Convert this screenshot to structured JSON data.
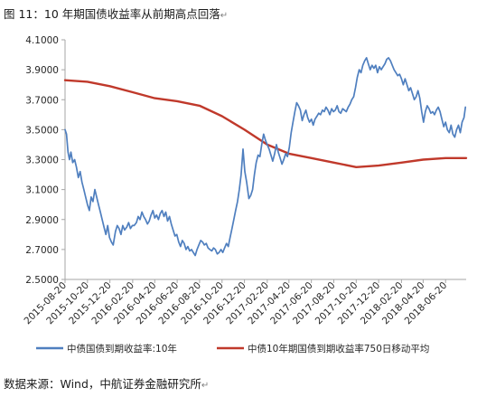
{
  "header": {
    "title": "图 11：10 年期国债收益率从前期高点回落",
    "title_mark": "↵"
  },
  "footer": {
    "source": "数据来源：Wind，中航证券金融研究所",
    "source_mark": "↵"
  },
  "colors": {
    "series_blue": "#4f7fbf",
    "series_red": "#c0392b",
    "axis": "#a6a6a6",
    "text": "#262626"
  },
  "chart_data": {
    "type": "line",
    "title": "",
    "xlabel": "",
    "ylabel": "",
    "ylim": [
      2.5,
      4.1
    ],
    "xlim": [
      "2015-08-20",
      "2018-08-15"
    ],
    "yticks": [
      "2.5000",
      "2.7000",
      "2.9000",
      "3.1000",
      "3.3000",
      "3.5000",
      "3.7000",
      "3.9000",
      "4.1000"
    ],
    "xticks": [
      "2015-08-20",
      "2015-10-20",
      "2015-12-20",
      "2016-02-20",
      "2016-04-20",
      "2016-06-20",
      "2016-08-20",
      "2016-10-20",
      "2016-12-20",
      "2017-02-20",
      "2017-04-20",
      "2017-06-20",
      "2017-08-20",
      "2017-10-20",
      "2017-12-20",
      "2018-02-20",
      "2018-04-20",
      "2018-06-20"
    ],
    "grid": false,
    "legend": "bottom",
    "series": [
      {
        "name": "中债国债到期收益率:10年",
        "color": "#4f7fbf",
        "points": [
          [
            "2015-08-20",
            3.5
          ],
          [
            "2015-08-24",
            3.47
          ],
          [
            "2015-08-28",
            3.35
          ],
          [
            "2015-09-01",
            3.3
          ],
          [
            "2015-09-05",
            3.35
          ],
          [
            "2015-09-10",
            3.28
          ],
          [
            "2015-09-15",
            3.3
          ],
          [
            "2015-09-20",
            3.25
          ],
          [
            "2015-09-25",
            3.18
          ],
          [
            "2015-09-30",
            3.22
          ],
          [
            "2015-10-05",
            3.15
          ],
          [
            "2015-10-10",
            3.1
          ],
          [
            "2015-10-15",
            3.05
          ],
          [
            "2015-10-20",
            3.0
          ],
          [
            "2015-10-25",
            2.96
          ],
          [
            "2015-10-30",
            3.05
          ],
          [
            "2015-11-04",
            3.02
          ],
          [
            "2015-11-09",
            3.1
          ],
          [
            "2015-11-14",
            3.05
          ],
          [
            "2015-11-19",
            3.0
          ],
          [
            "2015-11-24",
            2.95
          ],
          [
            "2015-11-29",
            2.9
          ],
          [
            "2015-12-04",
            2.85
          ],
          [
            "2015-12-09",
            2.8
          ],
          [
            "2015-12-14",
            2.86
          ],
          [
            "2015-12-19",
            2.78
          ],
          [
            "2015-12-24",
            2.75
          ],
          [
            "2015-12-29",
            2.73
          ],
          [
            "2016-01-04",
            2.82
          ],
          [
            "2016-01-09",
            2.86
          ],
          [
            "2016-01-14",
            2.84
          ],
          [
            "2016-01-19",
            2.8
          ],
          [
            "2016-01-24",
            2.86
          ],
          [
            "2016-01-29",
            2.83
          ],
          [
            "2016-02-04",
            2.85
          ],
          [
            "2016-02-09",
            2.88
          ],
          [
            "2016-02-14",
            2.84
          ],
          [
            "2016-02-19",
            2.86
          ],
          [
            "2016-02-24",
            2.86
          ],
          [
            "2016-03-01",
            2.88
          ],
          [
            "2016-03-06",
            2.92
          ],
          [
            "2016-03-11",
            2.9
          ],
          [
            "2016-03-16",
            2.95
          ],
          [
            "2016-03-21",
            2.92
          ],
          [
            "2016-03-26",
            2.9
          ],
          [
            "2016-03-31",
            2.87
          ],
          [
            "2016-04-05",
            2.89
          ],
          [
            "2016-04-10",
            2.93
          ],
          [
            "2016-04-15",
            2.96
          ],
          [
            "2016-04-20",
            2.91
          ],
          [
            "2016-04-25",
            2.93
          ],
          [
            "2016-04-30",
            2.9
          ],
          [
            "2016-05-05",
            2.94
          ],
          [
            "2016-05-10",
            2.96
          ],
          [
            "2016-05-15",
            2.92
          ],
          [
            "2016-05-20",
            2.95
          ],
          [
            "2016-05-25",
            2.89
          ],
          [
            "2016-05-30",
            2.92
          ],
          [
            "2016-06-04",
            2.87
          ],
          [
            "2016-06-09",
            2.83
          ],
          [
            "2016-06-14",
            2.79
          ],
          [
            "2016-06-19",
            2.8
          ],
          [
            "2016-06-24",
            2.75
          ],
          [
            "2016-06-29",
            2.72
          ],
          [
            "2016-07-04",
            2.76
          ],
          [
            "2016-07-09",
            2.74
          ],
          [
            "2016-07-14",
            2.7
          ],
          [
            "2016-07-19",
            2.72
          ],
          [
            "2016-07-24",
            2.69
          ],
          [
            "2016-07-29",
            2.7
          ],
          [
            "2016-08-03",
            2.68
          ],
          [
            "2016-08-08",
            2.66
          ],
          [
            "2016-08-13",
            2.7
          ],
          [
            "2016-08-18",
            2.73
          ],
          [
            "2016-08-23",
            2.76
          ],
          [
            "2016-08-28",
            2.75
          ],
          [
            "2016-09-02",
            2.73
          ],
          [
            "2016-09-07",
            2.74
          ],
          [
            "2016-09-12",
            2.71
          ],
          [
            "2016-09-17",
            2.7
          ],
          [
            "2016-09-22",
            2.69
          ],
          [
            "2016-09-27",
            2.71
          ],
          [
            "2016-10-02",
            2.7
          ],
          [
            "2016-10-07",
            2.67
          ],
          [
            "2016-10-12",
            2.68
          ],
          [
            "2016-10-17",
            2.7
          ],
          [
            "2016-10-22",
            2.68
          ],
          [
            "2016-10-27",
            2.71
          ],
          [
            "2016-11-01",
            2.74
          ],
          [
            "2016-11-06",
            2.72
          ],
          [
            "2016-11-11",
            2.78
          ],
          [
            "2016-11-16",
            2.84
          ],
          [
            "2016-11-21",
            2.9
          ],
          [
            "2016-11-26",
            2.96
          ],
          [
            "2016-12-01",
            3.02
          ],
          [
            "2016-12-06",
            3.1
          ],
          [
            "2016-12-11",
            3.2
          ],
          [
            "2016-12-16",
            3.37
          ],
          [
            "2016-12-21",
            3.22
          ],
          [
            "2016-12-26",
            3.15
          ],
          [
            "2017-01-01",
            3.04
          ],
          [
            "2017-01-06",
            3.06
          ],
          [
            "2017-01-11",
            3.1
          ],
          [
            "2017-01-16",
            3.2
          ],
          [
            "2017-01-21",
            3.28
          ],
          [
            "2017-01-26",
            3.33
          ],
          [
            "2017-01-31",
            3.32
          ],
          [
            "2017-02-05",
            3.4
          ],
          [
            "2017-02-10",
            3.47
          ],
          [
            "2017-02-15",
            3.43
          ],
          [
            "2017-02-20",
            3.4
          ],
          [
            "2017-02-25",
            3.37
          ],
          [
            "2017-03-02",
            3.33
          ],
          [
            "2017-03-07",
            3.29
          ],
          [
            "2017-03-12",
            3.34
          ],
          [
            "2017-03-17",
            3.4
          ],
          [
            "2017-03-22",
            3.35
          ],
          [
            "2017-03-27",
            3.31
          ],
          [
            "2017-04-01",
            3.27
          ],
          [
            "2017-04-06",
            3.3
          ],
          [
            "2017-04-11",
            3.34
          ],
          [
            "2017-04-16",
            3.32
          ],
          [
            "2017-04-21",
            3.38
          ],
          [
            "2017-04-26",
            3.48
          ],
          [
            "2017-05-01",
            3.55
          ],
          [
            "2017-05-06",
            3.62
          ],
          [
            "2017-05-11",
            3.68
          ],
          [
            "2017-05-16",
            3.66
          ],
          [
            "2017-05-21",
            3.63
          ],
          [
            "2017-05-26",
            3.56
          ],
          [
            "2017-05-31",
            3.6
          ],
          [
            "2017-06-05",
            3.63
          ],
          [
            "2017-06-10",
            3.58
          ],
          [
            "2017-06-15",
            3.55
          ],
          [
            "2017-06-20",
            3.57
          ],
          [
            "2017-06-25",
            3.53
          ],
          [
            "2017-06-30",
            3.57
          ],
          [
            "2017-07-05",
            3.59
          ],
          [
            "2017-07-10",
            3.61
          ],
          [
            "2017-07-15",
            3.6
          ],
          [
            "2017-07-20",
            3.63
          ],
          [
            "2017-07-25",
            3.62
          ],
          [
            "2017-07-30",
            3.65
          ],
          [
            "2017-08-04",
            3.63
          ],
          [
            "2017-08-09",
            3.6
          ],
          [
            "2017-08-14",
            3.64
          ],
          [
            "2017-08-19",
            3.62
          ],
          [
            "2017-08-24",
            3.63
          ],
          [
            "2017-08-29",
            3.66
          ],
          [
            "2017-09-03",
            3.62
          ],
          [
            "2017-09-08",
            3.61
          ],
          [
            "2017-09-13",
            3.64
          ],
          [
            "2017-09-18",
            3.63
          ],
          [
            "2017-09-23",
            3.62
          ],
          [
            "2017-09-28",
            3.65
          ],
          [
            "2017-10-03",
            3.67
          ],
          [
            "2017-10-08",
            3.7
          ],
          [
            "2017-10-13",
            3.72
          ],
          [
            "2017-10-18",
            3.78
          ],
          [
            "2017-10-23",
            3.85
          ],
          [
            "2017-10-28",
            3.9
          ],
          [
            "2017-11-02",
            3.88
          ],
          [
            "2017-11-07",
            3.93
          ],
          [
            "2017-11-12",
            3.96
          ],
          [
            "2017-11-17",
            3.98
          ],
          [
            "2017-11-22",
            3.94
          ],
          [
            "2017-11-27",
            3.9
          ],
          [
            "2017-12-02",
            3.93
          ],
          [
            "2017-12-07",
            3.91
          ],
          [
            "2017-12-12",
            3.93
          ],
          [
            "2017-12-17",
            3.88
          ],
          [
            "2017-12-22",
            3.92
          ],
          [
            "2017-12-27",
            3.9
          ],
          [
            "2018-01-01",
            3.92
          ],
          [
            "2018-01-06",
            3.94
          ],
          [
            "2018-01-11",
            3.97
          ],
          [
            "2018-01-16",
            3.98
          ],
          [
            "2018-01-21",
            3.96
          ],
          [
            "2018-01-26",
            3.93
          ],
          [
            "2018-01-31",
            3.9
          ],
          [
            "2018-02-05",
            3.88
          ],
          [
            "2018-02-10",
            3.86
          ],
          [
            "2018-02-15",
            3.87
          ],
          [
            "2018-02-20",
            3.84
          ],
          [
            "2018-02-25",
            3.8
          ],
          [
            "2018-03-02",
            3.84
          ],
          [
            "2018-03-07",
            3.8
          ],
          [
            "2018-03-12",
            3.76
          ],
          [
            "2018-03-17",
            3.78
          ],
          [
            "2018-03-22",
            3.74
          ],
          [
            "2018-03-27",
            3.7
          ],
          [
            "2018-04-01",
            3.72
          ],
          [
            "2018-04-06",
            3.76
          ],
          [
            "2018-04-11",
            3.71
          ],
          [
            "2018-04-16",
            3.62
          ],
          [
            "2018-04-21",
            3.55
          ],
          [
            "2018-04-26",
            3.62
          ],
          [
            "2018-05-01",
            3.66
          ],
          [
            "2018-05-06",
            3.64
          ],
          [
            "2018-05-11",
            3.61
          ],
          [
            "2018-05-16",
            3.62
          ],
          [
            "2018-05-21",
            3.6
          ],
          [
            "2018-05-26",
            3.63
          ],
          [
            "2018-05-31",
            3.65
          ],
          [
            "2018-06-05",
            3.62
          ],
          [
            "2018-06-10",
            3.57
          ],
          [
            "2018-06-15",
            3.52
          ],
          [
            "2018-06-20",
            3.55
          ],
          [
            "2018-06-25",
            3.5
          ],
          [
            "2018-06-30",
            3.48
          ],
          [
            "2018-07-05",
            3.53
          ],
          [
            "2018-07-10",
            3.47
          ],
          [
            "2018-07-15",
            3.45
          ],
          [
            "2018-07-20",
            3.5
          ],
          [
            "2018-07-25",
            3.53
          ],
          [
            "2018-07-30",
            3.48
          ],
          [
            "2018-08-04",
            3.55
          ],
          [
            "2018-08-09",
            3.58
          ],
          [
            "2018-08-13",
            3.65
          ]
        ]
      },
      {
        "name": "中债10年期国债到期收益率750日移动平均",
        "color": "#c0392b",
        "points": [
          [
            "2015-08-20",
            3.83
          ],
          [
            "2015-10-20",
            3.82
          ],
          [
            "2015-12-20",
            3.79
          ],
          [
            "2016-02-20",
            3.75
          ],
          [
            "2016-04-20",
            3.71
          ],
          [
            "2016-06-20",
            3.69
          ],
          [
            "2016-08-20",
            3.66
          ],
          [
            "2016-10-20",
            3.59
          ],
          [
            "2016-12-20",
            3.5
          ],
          [
            "2017-02-20",
            3.4
          ],
          [
            "2017-04-20",
            3.34
          ],
          [
            "2017-06-20",
            3.31
          ],
          [
            "2017-08-20",
            3.28
          ],
          [
            "2017-10-20",
            3.25
          ],
          [
            "2017-12-20",
            3.26
          ],
          [
            "2018-02-20",
            3.28
          ],
          [
            "2018-04-20",
            3.3
          ],
          [
            "2018-06-20",
            3.31
          ],
          [
            "2018-08-15",
            3.31
          ]
        ]
      }
    ]
  }
}
